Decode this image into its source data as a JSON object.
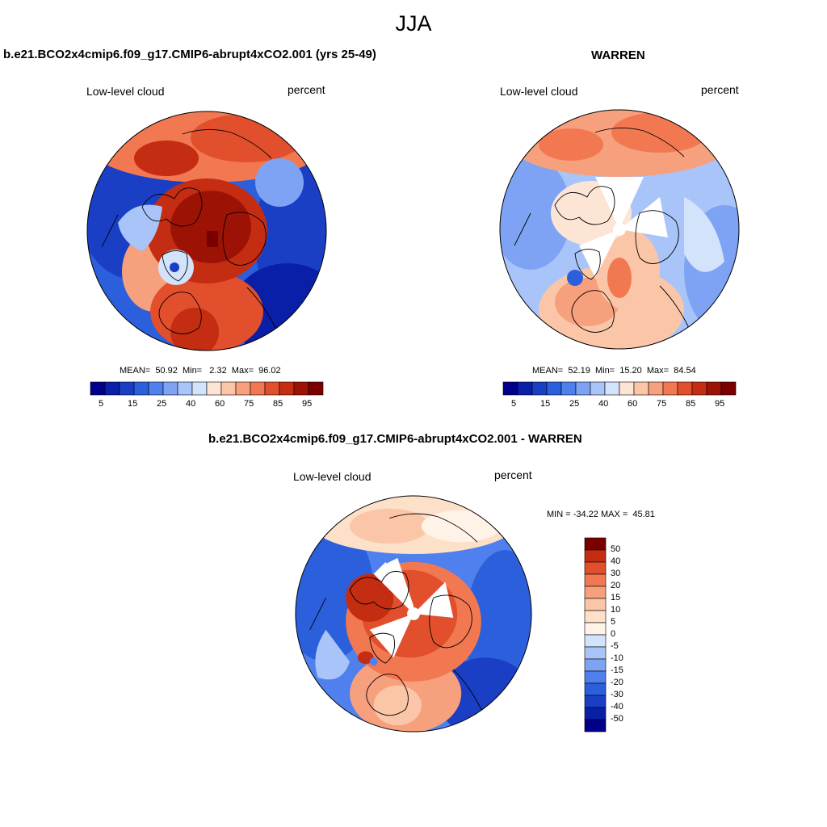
{
  "figure": {
    "title": "JJA"
  },
  "palettes": {
    "abs": [
      "#00008b",
      "#0a1fa8",
      "#1a3fc4",
      "#2b5fdc",
      "#4f80ee",
      "#7ea3f5",
      "#a9c4f9",
      "#d3e3fb",
      "#fde5d6",
      "#fbc6a8",
      "#f7a07d",
      "#f27852",
      "#e24f2c",
      "#c52d12",
      "#9c1306",
      "#7a0000"
    ],
    "diff": [
      "#00008b",
      "#0a1fa8",
      "#1a3fc4",
      "#2b5fdc",
      "#4f80ee",
      "#7ea3f5",
      "#a9c4f9",
      "#d3e3fb",
      "#fff2e6",
      "#fde0c8",
      "#fbc6a8",
      "#f7a07d",
      "#f27852",
      "#e24f2c",
      "#c52d12",
      "#7a0000"
    ]
  },
  "panels": [
    {
      "id": "model",
      "title": "b.e21.BCO2x4cmip6.f09_g17.CMIP6-abrupt4xCO2.001 (yrs 25-49)",
      "left_label": "Low-level cloud",
      "right_label": "percent",
      "stats": "MEAN=  50.92  Min=   2.32  Max=  96.02",
      "colorbar_ticks": [
        "5",
        "15",
        "25",
        "40",
        "60",
        "75",
        "85",
        "95"
      ]
    },
    {
      "id": "obs",
      "title": "WARREN",
      "left_label": "Low-level cloud",
      "right_label": "percent",
      "stats": "MEAN=  52.19  Min=  15.20  Max=  84.54",
      "colorbar_ticks": [
        "5",
        "15",
        "25",
        "40",
        "60",
        "75",
        "85",
        "95"
      ]
    },
    {
      "id": "diff",
      "title": "b.e21.BCO2x4cmip6.f09_g17.CMIP6-abrupt4xCO2.001 - WARREN",
      "left_label": "Low-level cloud",
      "right_label": "percent",
      "stats": "MIN = -34.22 MAX =  45.81",
      "colorbar_ticks": [
        "50",
        "40",
        "30",
        "20",
        "15",
        "10",
        "5",
        "0",
        "-5",
        "-10",
        "-15",
        "-20",
        "-30",
        "-40",
        "-50"
      ]
    }
  ]
}
